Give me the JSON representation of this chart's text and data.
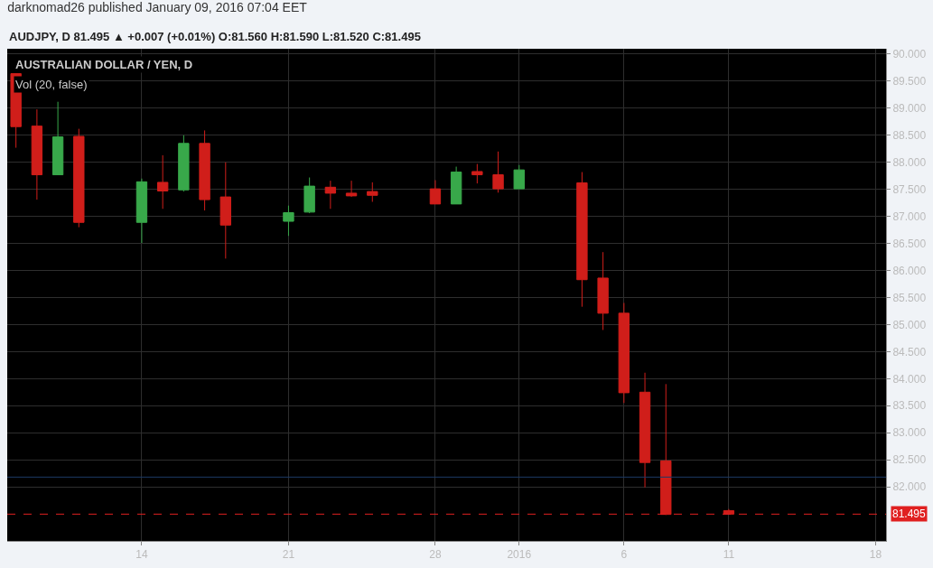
{
  "chart_data": {
    "type": "candlestick",
    "title": "darknomad26 published January 09, 2016 07:04 EET",
    "subtitle": "AUDJPY, D 81.495 ▲ +0.007 (+0.01%) O:81.560 H:81.590 L:81.520 C:81.495",
    "annotations": [
      "AUSTRALIAN DOLLAR / YEN, D",
      "Vol (20, false)"
    ],
    "x": [
      "2015-12-08",
      "2015-12-09",
      "2015-12-10",
      "2015-12-11",
      "2015-12-14",
      "2015-12-15",
      "2015-12-16",
      "2015-12-17",
      "2015-12-18",
      "2015-12-21",
      "2015-12-22",
      "2015-12-23",
      "2015-12-24",
      "2015-12-25",
      "2015-12-28",
      "2015-12-29",
      "2015-12-30",
      "2015-12-31",
      "2016-01-01",
      "2016-01-04",
      "2016-01-05",
      "2016-01-06",
      "2016-01-07",
      "2016-01-08",
      "2016-01-11"
    ],
    "ohlc": [
      [
        89.64,
        89.65,
        88.27,
        88.66
      ],
      [
        88.67,
        88.98,
        87.31,
        87.77
      ],
      [
        87.77,
        89.12,
        87.77,
        88.47
      ],
      [
        88.48,
        88.62,
        86.8,
        86.89
      ],
      [
        86.89,
        87.7,
        86.51,
        87.64
      ],
      [
        87.63,
        88.13,
        87.14,
        87.47
      ],
      [
        87.49,
        88.5,
        87.46,
        88.35
      ],
      [
        88.35,
        88.59,
        87.11,
        87.31
      ],
      [
        87.36,
        88.0,
        86.22,
        86.84
      ],
      [
        86.91,
        87.2,
        86.64,
        87.07
      ],
      [
        87.08,
        87.72,
        87.06,
        87.56
      ],
      [
        87.54,
        87.66,
        87.14,
        87.43
      ],
      [
        87.43,
        87.66,
        87.36,
        87.38
      ],
      [
        87.46,
        87.63,
        87.27,
        87.39
      ],
      [
        87.51,
        87.67,
        87.23,
        87.23
      ],
      [
        87.23,
        87.92,
        87.23,
        87.82
      ],
      [
        87.83,
        87.97,
        87.61,
        87.77
      ],
      [
        87.77,
        88.2,
        87.44,
        87.51
      ],
      [
        87.51,
        87.95,
        87.51,
        87.86
      ],
      [
        87.62,
        87.82,
        85.33,
        85.83
      ],
      [
        85.86,
        86.34,
        84.9,
        85.21
      ],
      [
        85.21,
        85.4,
        83.55,
        83.74
      ],
      [
        83.75,
        84.11,
        81.99,
        82.45
      ],
      [
        82.48,
        83.9,
        81.48,
        81.49
      ],
      [
        81.56,
        81.59,
        81.495,
        81.495
      ]
    ],
    "colors": [
      "#d01e1a",
      "#d01e1a",
      "#38a84a",
      "#d01e1a",
      "#38a84a",
      "#d01e1a",
      "#38a84a",
      "#d01e1a",
      "#d01e1a",
      "#38a84a",
      "#38a84a",
      "#d01e1a",
      "#d01e1a",
      "#d01e1a",
      "#d01e1a",
      "#38a84a",
      "#d01e1a",
      "#d01e1a",
      "#38a84a",
      "#d01e1a",
      "#d01e1a",
      "#d01e1a",
      "#d01e1a",
      "#d01e1a",
      "#d01e1a"
    ],
    "xlim": [
      "2015-12-07T14:00",
      "2016-01-18T12:00"
    ],
    "xticks": [
      {
        "value": "2015-12-14",
        "label": "14"
      },
      {
        "value": "2015-12-21",
        "label": "21"
      },
      {
        "value": "2015-12-28",
        "label": "28"
      },
      {
        "value": "2016-01-01",
        "label": "2016"
      },
      {
        "value": "2016-01-06",
        "label": "6"
      },
      {
        "value": "2016-01-11",
        "label": "11"
      },
      {
        "value": "2016-01-18",
        "label": "18"
      }
    ],
    "ylim": [
      81.0,
      90.1
    ],
    "yticks": [
      {
        "value": 82,
        "label": "82.000"
      },
      {
        "value": 82.5,
        "label": "82.500"
      },
      {
        "value": 83,
        "label": "83.000"
      },
      {
        "value": 83.5,
        "label": "83.500"
      },
      {
        "value": 84,
        "label": "84.000"
      },
      {
        "value": 84.5,
        "label": "84.500"
      },
      {
        "value": 85,
        "label": "85.000"
      },
      {
        "value": 85.5,
        "label": "85.500"
      },
      {
        "value": 86,
        "label": "86.000"
      },
      {
        "value": 86.5,
        "label": "86.500"
      },
      {
        "value": 87,
        "label": "87.000"
      },
      {
        "value": 87.5,
        "label": "87.500"
      },
      {
        "value": 88,
        "label": "88.000"
      },
      {
        "value": 88.5,
        "label": "88.500"
      },
      {
        "value": 89,
        "label": "89.000"
      },
      {
        "value": 89.5,
        "label": "89.500"
      },
      {
        "value": 90,
        "label": "90.000"
      }
    ],
    "ref_lines": [
      {
        "axis": "y",
        "value": 82.18,
        "color": "#1c3a66",
        "line_style": "solid"
      },
      {
        "axis": "y",
        "value": 81.495,
        "label": "81.495",
        "color": "#e02020",
        "line_style": "dashed"
      }
    ],
    "grid": true,
    "legend": false
  }
}
